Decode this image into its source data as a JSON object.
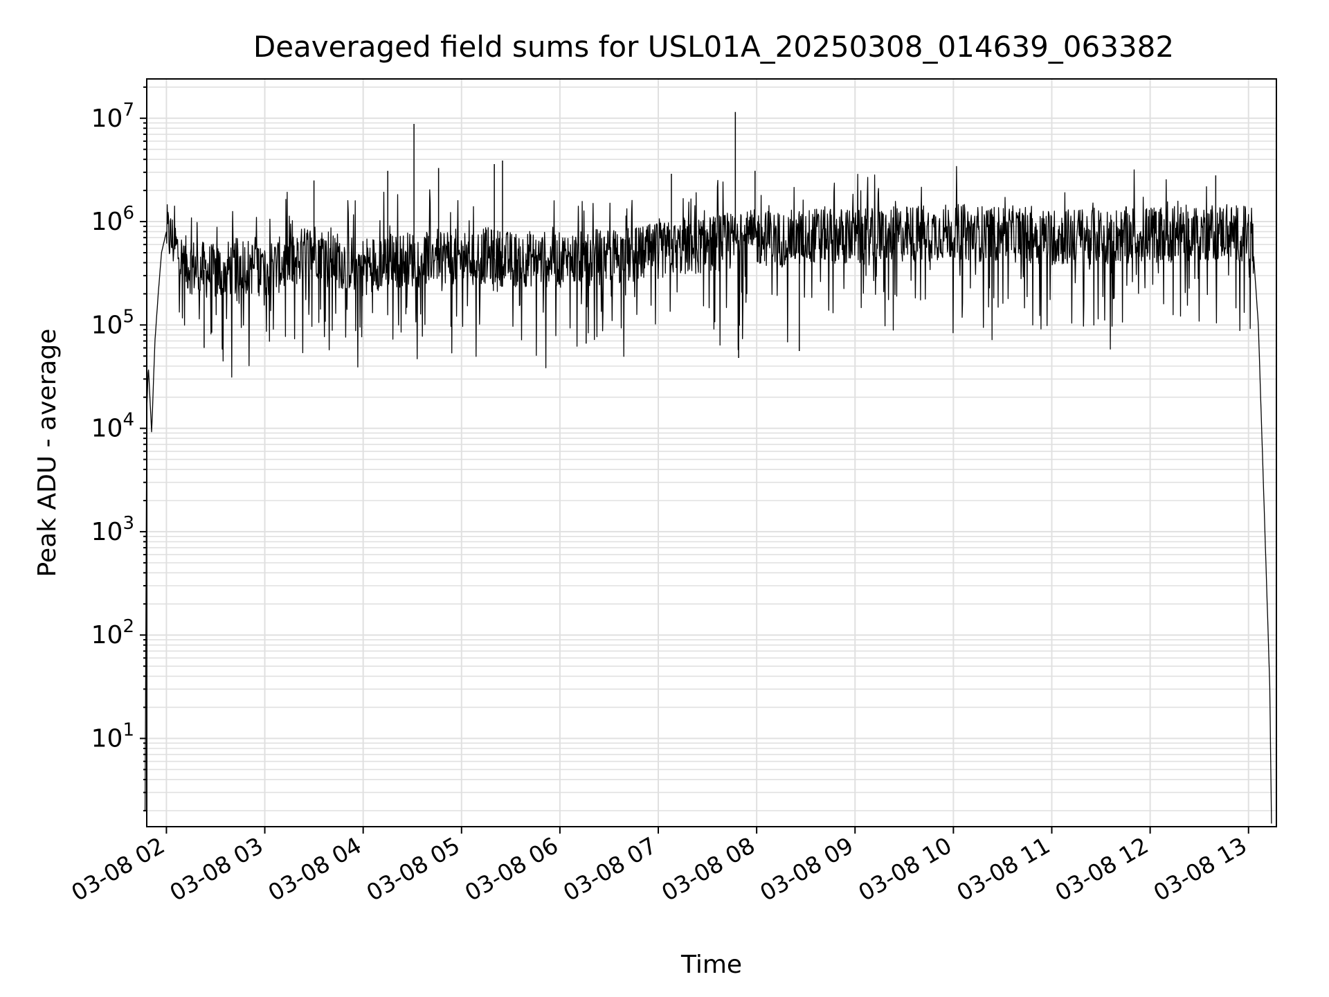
{
  "chart_data": {
    "type": "line",
    "title": "Deaveraged field sums for USL01A_20250308_014639_063382",
    "xlabel": "Time",
    "ylabel": "Peak ADU - average",
    "yscale": "log",
    "grid": true,
    "line_color": "#000000",
    "grid_color": "#e0e0e0",
    "xlim": [
      "2025-03-08T01:48:00",
      "2025-03-08T13:17:00"
    ],
    "ylim": [
      1.4,
      24000000
    ],
    "x_ticks": [
      "03-08 02",
      "03-08 03",
      "03-08 04",
      "03-08 05",
      "03-08 06",
      "03-08 07",
      "03-08 08",
      "03-08 09",
      "03-08 10",
      "03-08 11",
      "03-08 12",
      "03-08 13"
    ],
    "y_ticks": [
      {
        "base": "10",
        "exp": "1"
      },
      {
        "base": "10",
        "exp": "2"
      },
      {
        "base": "10",
        "exp": "3"
      },
      {
        "base": "10",
        "exp": "4"
      },
      {
        "base": "10",
        "exp": "5"
      },
      {
        "base": "10",
        "exp": "6"
      },
      {
        "base": "10",
        "exp": "7"
      }
    ],
    "series": [
      {
        "x": [
          "2025-03-08T01:47:00",
          "2025-03-08T01:48:00",
          "2025-03-08T01:49:00",
          "2025-03-08T01:51:00",
          "2025-03-08T01:53:00",
          "2025-03-08T01:55:00",
          "2025-03-08T01:57:00",
          "2025-03-08T02:00:00",
          "2025-03-08T02:05:00",
          "2025-03-08T02:10:00",
          "2025-03-08T02:20:00",
          "2025-03-08T02:30:00",
          "2025-03-08T02:45:00",
          "2025-03-08T03:00:00",
          "2025-03-08T03:15:00",
          "2025-03-08T03:30:00",
          "2025-03-08T03:45:00",
          "2025-03-08T04:00:00",
          "2025-03-08T04:15:00",
          "2025-03-08T04:30:00",
          "2025-03-08T04:45:00",
          "2025-03-08T05:00:00",
          "2025-03-08T05:15:00",
          "2025-03-08T05:30:00",
          "2025-03-08T05:45:00",
          "2025-03-08T06:00:00",
          "2025-03-08T06:15:00",
          "2025-03-08T06:30:00",
          "2025-03-08T06:45:00",
          "2025-03-08T07:00:00",
          "2025-03-08T07:15:00",
          "2025-03-08T07:30:00",
          "2025-03-08T07:45:00",
          "2025-03-08T08:00:00",
          "2025-03-08T08:15:00",
          "2025-03-08T08:30:00",
          "2025-03-08T08:45:00",
          "2025-03-08T09:00:00",
          "2025-03-08T09:15:00",
          "2025-03-08T09:30:00",
          "2025-03-08T09:45:00",
          "2025-03-08T10:00:00",
          "2025-03-08T10:15:00",
          "2025-03-08T10:30:00",
          "2025-03-08T10:45:00",
          "2025-03-08T11:00:00",
          "2025-03-08T11:15:00",
          "2025-03-08T11:30:00",
          "2025-03-08T11:45:00",
          "2025-03-08T12:00:00",
          "2025-03-08T12:15:00",
          "2025-03-08T12:30:00",
          "2025-03-08T12:45:00",
          "2025-03-08T13:00:00",
          "2025-03-08T13:03:00",
          "2025-03-08T13:06:00",
          "2025-03-08T13:08:00",
          "2025-03-08T13:10:00",
          "2025-03-08T13:12:00",
          "2025-03-08T13:13:00",
          "2025-03-08T13:14:00"
        ],
        "y": [
          2,
          15000,
          40000,
          9000,
          70000,
          200000,
          500000,
          800000,
          600000,
          400000,
          350000,
          320000,
          380000,
          350000,
          400000,
          550000,
          420000,
          380000,
          420000,
          430000,
          480000,
          450000,
          470000,
          430000,
          440000,
          420000,
          450000,
          460000,
          470000,
          520000,
          560000,
          600000,
          650000,
          700000,
          680000,
          720000,
          750000,
          700000,
          720000,
          760000,
          780000,
          800000,
          770000,
          760000,
          750000,
          700000,
          720000,
          730000,
          740000,
          750000,
          760000,
          780000,
          800000,
          750000,
          500000,
          100000,
          10000,
          1000,
          100,
          30,
          1.5
        ]
      }
    ],
    "spikes": [
      {
        "x": "2025-03-08T03:30:00",
        "y": 2500000
      },
      {
        "x": "2025-03-08T04:15:00",
        "y": 3100000
      },
      {
        "x": "2025-03-08T04:31:00",
        "y": 8800000
      },
      {
        "x": "2025-03-08T04:46:00",
        "y": 3300000
      },
      {
        "x": "2025-03-08T05:20:00",
        "y": 3600000
      },
      {
        "x": "2025-03-08T05:25:00",
        "y": 3900000
      },
      {
        "x": "2025-03-08T07:08:00",
        "y": 2900000
      },
      {
        "x": "2025-03-08T07:47:00",
        "y": 11500000
      },
      {
        "x": "2025-03-08T07:59:00",
        "y": 3100000
      },
      {
        "x": "2025-03-08T12:40:00",
        "y": 2800000
      },
      {
        "x": "2025-03-08T07:49:00",
        "y": 48000
      },
      {
        "x": "2025-03-08T08:26:00",
        "y": 56000
      },
      {
        "x": "2025-03-08T02:23:00",
        "y": 60000
      },
      {
        "x": "2025-03-08T06:16:00",
        "y": 66000
      }
    ]
  }
}
